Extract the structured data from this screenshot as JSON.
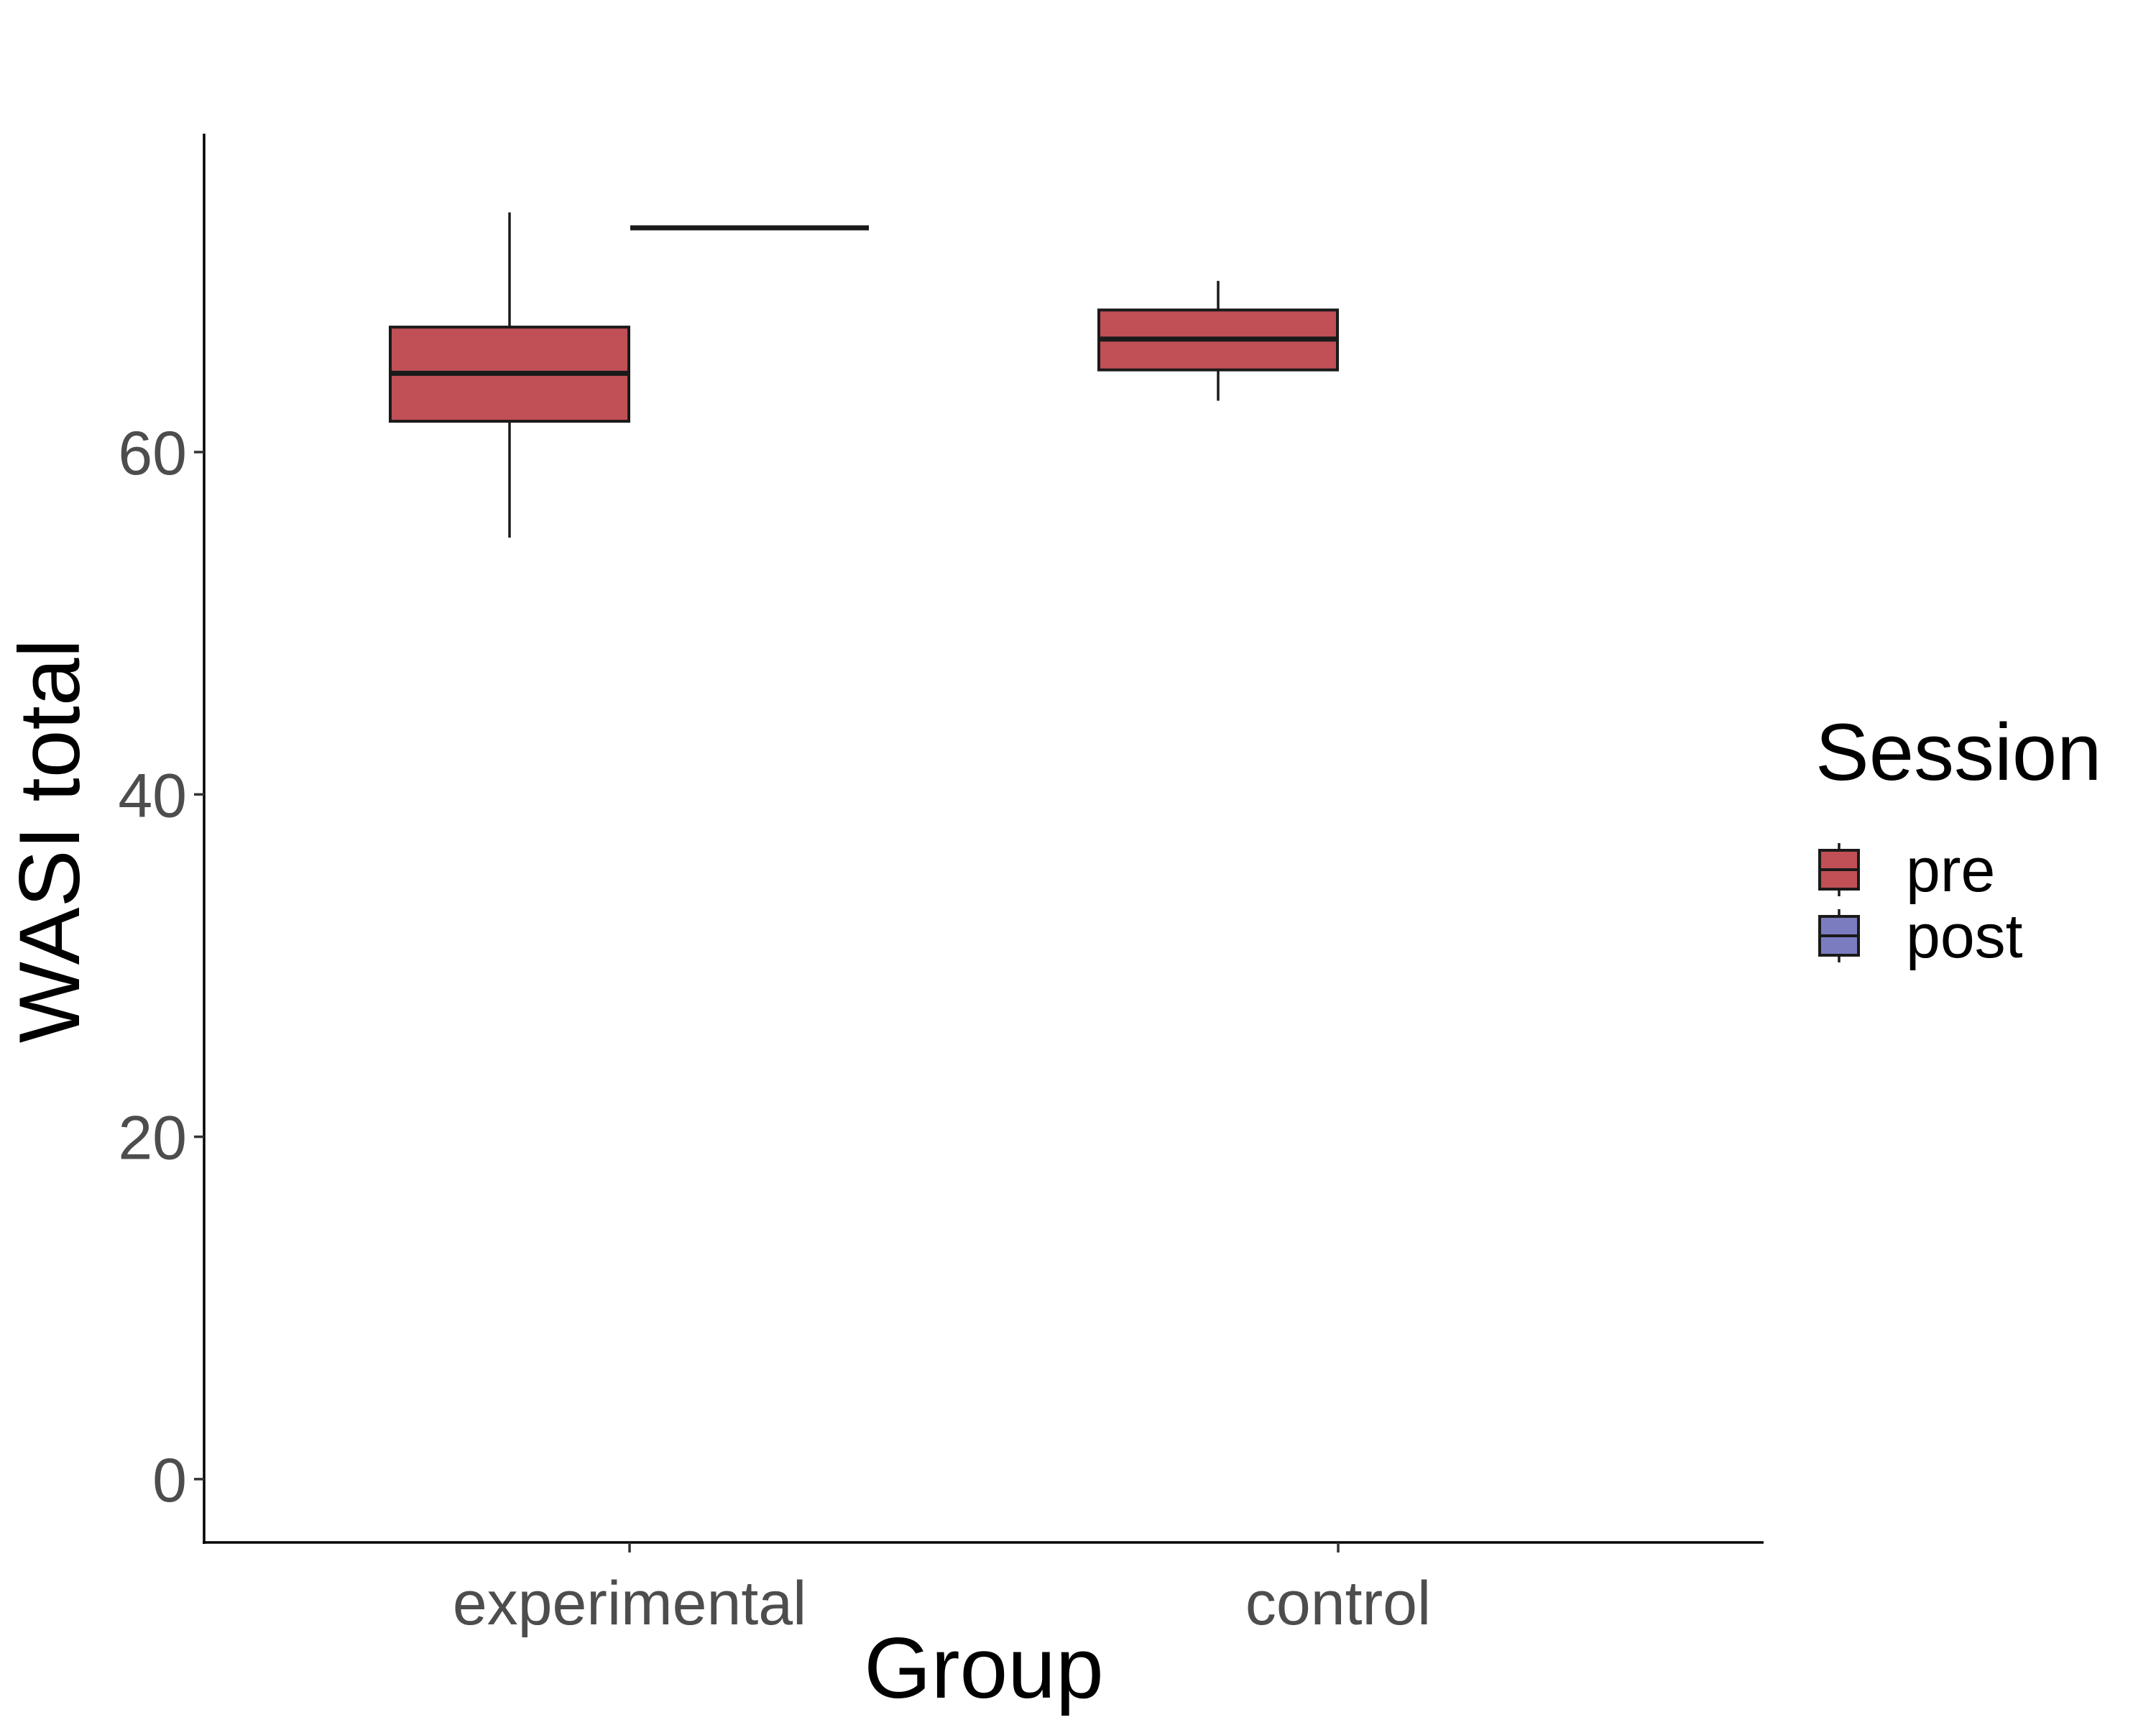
{
  "chart_data": {
    "type": "boxplot",
    "title": "",
    "xlabel": "Group",
    "ylabel": "WASI total",
    "categories": [
      "experimental",
      "control"
    ],
    "yticks": [
      0,
      20,
      40,
      60
    ],
    "ylim": [
      -3.7,
      78.6
    ],
    "grid": false,
    "legend": {
      "title": "Session",
      "position": "right"
    },
    "series": [
      {
        "name": "pre",
        "color": "#C05055",
        "boxes": [
          {
            "category": "experimental",
            "whisker_low": 55,
            "q1": 61.8,
            "median": 64.6,
            "q3": 67.3,
            "whisker_high": 74
          },
          {
            "category": "control",
            "whisker_low": 63,
            "q1": 64.8,
            "median": 66.6,
            "q3": 68.3,
            "whisker_high": 70
          }
        ]
      },
      {
        "name": "post",
        "color": "#7B7CC0",
        "boxes": [
          {
            "category": "experimental",
            "whisker_low": 73.1,
            "q1": 73.1,
            "median": 73.1,
            "q3": 73.1,
            "whisker_high": 73.1
          }
        ]
      }
    ]
  }
}
